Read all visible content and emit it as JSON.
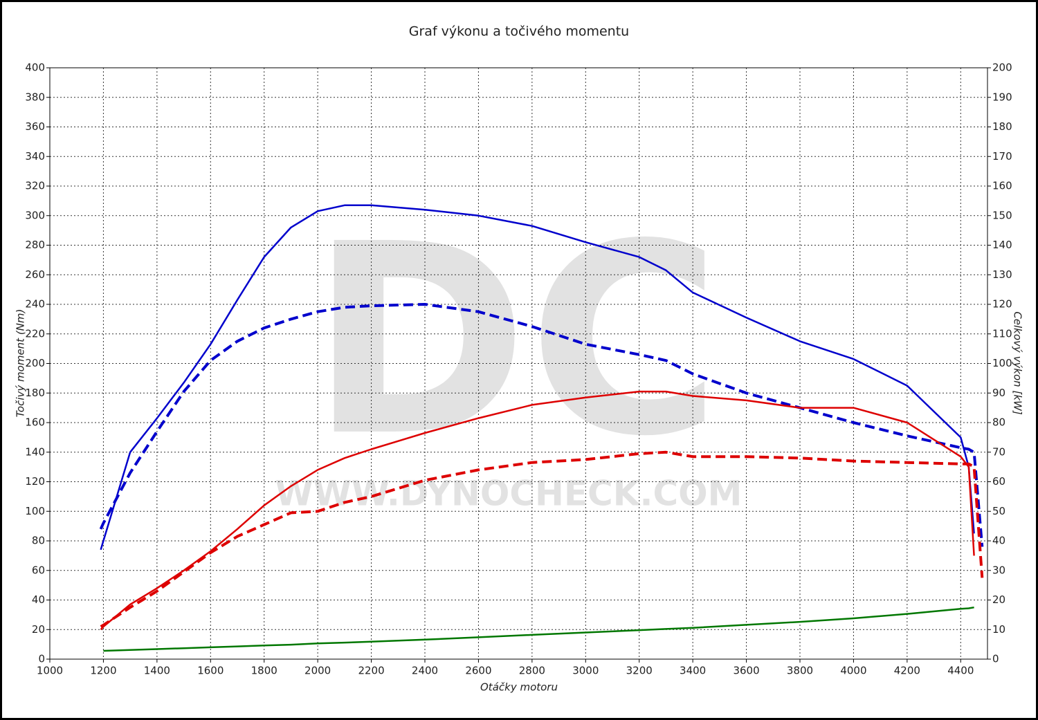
{
  "chart_data": {
    "type": "line",
    "title": "Graf výkonu a točivého momentu",
    "x_label": "Otáčky motoru",
    "y_label": "Točivý moment (Nm)",
    "y2_label": "Celkový výkon [kW]",
    "watermark": [
      "DC",
      "WWW.DYNOCHECK.COM"
    ],
    "x": [
      1190,
      1200,
      1300,
      1400,
      1500,
      1600,
      1700,
      1800,
      1900,
      2000,
      2100,
      2200,
      2400,
      2600,
      2800,
      3000,
      3200,
      3300,
      3400,
      3600,
      3800,
      4000,
      4200,
      4400,
      4430,
      4450,
      4480
    ],
    "xlim": [
      1000,
      4500
    ],
    "xticks": [
      1000,
      1200,
      1400,
      1600,
      1800,
      2000,
      2200,
      2400,
      2600,
      2800,
      3000,
      3200,
      3400,
      3600,
      3800,
      4000,
      4200,
      4400
    ],
    "ylim": [
      0,
      400
    ],
    "yticks": [
      0,
      20,
      40,
      60,
      80,
      100,
      120,
      140,
      160,
      180,
      200,
      220,
      240,
      260,
      280,
      300,
      320,
      340,
      360,
      380,
      400
    ],
    "y2lim": [
      0,
      200
    ],
    "y2ticks": [
      0,
      10,
      20,
      30,
      40,
      50,
      60,
      70,
      80,
      90,
      100,
      110,
      120,
      130,
      140,
      150,
      160,
      170,
      180,
      190,
      200
    ],
    "grid": true,
    "series": [
      {
        "color": "#0000cc",
        "dashed": false,
        "values": [
          74,
          80,
          140,
          163,
          187,
          213,
          243,
          272,
          292,
          303,
          307,
          307,
          304,
          300,
          293,
          282,
          272,
          263,
          248,
          231,
          215,
          203,
          185,
          150,
          130,
          85,
          null
        ]
      },
      {
        "color": "#0000cc",
        "dashed": true,
        "values": [
          88,
          92,
          126,
          154,
          181,
          202,
          215,
          224,
          230,
          235,
          238,
          239,
          240,
          235,
          225,
          213,
          206,
          202,
          193,
          180,
          170,
          160,
          151,
          143,
          142,
          140,
          76
        ]
      },
      {
        "color": "#dd0000",
        "dashed": false,
        "axis": "y2",
        "values": [
          10,
          11,
          18.5,
          24,
          30,
          36.5,
          44,
          52,
          58.5,
          64,
          68,
          71,
          76.5,
          81.5,
          86,
          88.5,
          90.5,
          90.5,
          89,
          87.5,
          85,
          85,
          80,
          68.5,
          65,
          35,
          null
        ]
      },
      {
        "color": "#dd0000",
        "dashed": true,
        "axis": "y2",
        "values": [
          11,
          11.5,
          17.5,
          23,
          29.5,
          36,
          41.5,
          45.5,
          49.5,
          50,
          53,
          55,
          60.5,
          64,
          66.5,
          67.5,
          69.5,
          70,
          68.5,
          68.5,
          68,
          67,
          66.5,
          66,
          66,
          65,
          27.5
        ]
      },
      {
        "color": "#007700",
        "dashed": false,
        "axis": "y2",
        "values": [
          null,
          2.8,
          3.1,
          3.4,
          3.7,
          4.0,
          4.3,
          4.6,
          4.9,
          5.3,
          5.6,
          5.9,
          6.6,
          7.4,
          8.2,
          9.0,
          9.8,
          10.2,
          10.6,
          11.6,
          12.6,
          13.8,
          15.3,
          17.0,
          17.2,
          17.5,
          null
        ]
      }
    ]
  }
}
